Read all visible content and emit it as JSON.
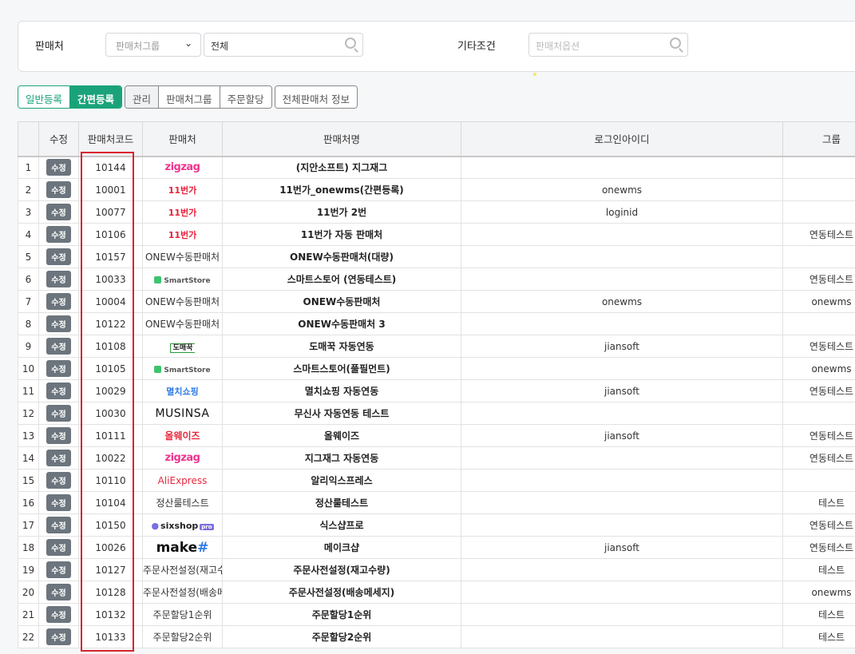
{
  "filter": {
    "seller_label": "판매처",
    "group_select": "판매처그룹",
    "seller_input_value": "전체",
    "etc_label": "기타조건",
    "option_placeholder": "판매처옵션"
  },
  "buttons": {
    "normal_register": "일반등록",
    "quick_register": "간편등록",
    "manage": "관리",
    "seller_group": "판매처그룹",
    "order_allocation": "주문할당",
    "all_seller_info": "전체판매처 정보"
  },
  "table": {
    "headers": [
      "",
      "수정",
      "판매처코드",
      "판매처",
      "판매처명",
      "로그인아이디",
      "그룹"
    ],
    "edit_label": "수정",
    "rows": [
      {
        "no": "1",
        "code": "10144",
        "seller": {
          "logo": "zigzag",
          "text": "zigzag"
        },
        "name": "(지안소프트) 지그재그",
        "login": "",
        "group": ""
      },
      {
        "no": "2",
        "code": "10001",
        "seller": {
          "logo": "st11",
          "text": "11번가"
        },
        "name": "11번가_onewms(간편등록)",
        "login": "onewms",
        "group": ""
      },
      {
        "no": "3",
        "code": "10077",
        "seller": {
          "logo": "st11",
          "text": "11번가"
        },
        "name": "11번가 2번",
        "login": "loginid",
        "group": ""
      },
      {
        "no": "4",
        "code": "10106",
        "seller": {
          "logo": "st11",
          "text": "11번가"
        },
        "name": "11번가 자동 판매처",
        "login": "",
        "group": "연동테스트"
      },
      {
        "no": "5",
        "code": "10157",
        "seller": {
          "logo": "",
          "text": "ONEW수동판매처"
        },
        "name": "ONEW수동판매처(대량)",
        "login": "",
        "group": ""
      },
      {
        "no": "6",
        "code": "10033",
        "seller": {
          "logo": "smart",
          "text": "SmartStore"
        },
        "name": "스마트스토어 (연동테스트)",
        "login": "",
        "group": "연동테스트"
      },
      {
        "no": "7",
        "code": "10004",
        "seller": {
          "logo": "",
          "text": "ONEW수동판매처"
        },
        "name": "ONEW수동판매처",
        "login": "onewms",
        "group": "onewms"
      },
      {
        "no": "8",
        "code": "10122",
        "seller": {
          "logo": "",
          "text": "ONEW수동판매처"
        },
        "name": "ONEW수동판매처 3",
        "login": "",
        "group": ""
      },
      {
        "no": "9",
        "code": "10108",
        "seller": {
          "logo": "domae",
          "text": "도매꾹"
        },
        "name": "도매꾹 자동연동",
        "login": "jiansoft",
        "group": "연동테스트"
      },
      {
        "no": "10",
        "code": "10105",
        "seller": {
          "logo": "smart",
          "text": "SmartStore"
        },
        "name": "스마트스토어(풀필먼트)",
        "login": "",
        "group": "onewms"
      },
      {
        "no": "11",
        "code": "10029",
        "seller": {
          "logo": "myul",
          "text": "멸치쇼핑"
        },
        "name": "멸치쇼핑 자동연동",
        "login": "jiansoft",
        "group": "연동테스트"
      },
      {
        "no": "12",
        "code": "10030",
        "seller": {
          "logo": "musinsa",
          "text": "MUSINSA"
        },
        "name": "무신사 자동연동 테스트",
        "login": "",
        "group": ""
      },
      {
        "no": "13",
        "code": "10111",
        "seller": {
          "logo": "always",
          "text": "올웨이즈"
        },
        "name": "올웨이즈",
        "login": "jiansoft",
        "group": "연동테스트"
      },
      {
        "no": "14",
        "code": "10022",
        "seller": {
          "logo": "zigzag",
          "text": "zigzag"
        },
        "name": "지그재그 자동연동",
        "login": "",
        "group": "연동테스트"
      },
      {
        "no": "15",
        "code": "10110",
        "seller": {
          "logo": "ali",
          "text": "AliExpress"
        },
        "name": "알리익스프레스",
        "login": "",
        "group": ""
      },
      {
        "no": "16",
        "code": "10104",
        "seller": {
          "logo": "",
          "text": "정산룰테스트"
        },
        "name": "정산룰테스트",
        "login": "",
        "group": "테스트"
      },
      {
        "no": "17",
        "code": "10150",
        "seller": {
          "logo": "six",
          "text": "sixshop"
        },
        "name": "식스샵프로",
        "login": "",
        "group": "연동테스트"
      },
      {
        "no": "18",
        "code": "10026",
        "seller": {
          "logo": "make",
          "text": "make"
        },
        "name": "메이크샵",
        "login": "jiansoft",
        "group": "연동테스트"
      },
      {
        "no": "19",
        "code": "10127",
        "seller": {
          "logo": "",
          "text": "주문사전설정(재고수량)"
        },
        "name": "주문사전설정(재고수량)",
        "login": "",
        "group": "테스트"
      },
      {
        "no": "20",
        "code": "10128",
        "seller": {
          "logo": "",
          "text": "주문사전설정(배송메세지)"
        },
        "name": "주문사전설정(배송메세지)",
        "login": "",
        "group": "onewms"
      },
      {
        "no": "21",
        "code": "10132",
        "seller": {
          "logo": "",
          "text": "주문할당1순위"
        },
        "name": "주문할당1순위",
        "login": "",
        "group": "테스트"
      },
      {
        "no": "22",
        "code": "10133",
        "seller": {
          "logo": "",
          "text": "주문할당2순위"
        },
        "name": "주문할당2순위",
        "login": "",
        "group": "테스트"
      }
    ]
  },
  "colors": {
    "accent": "#1aa37a",
    "edit_button": "#6c757d",
    "highlight_box": "#d9232e"
  }
}
